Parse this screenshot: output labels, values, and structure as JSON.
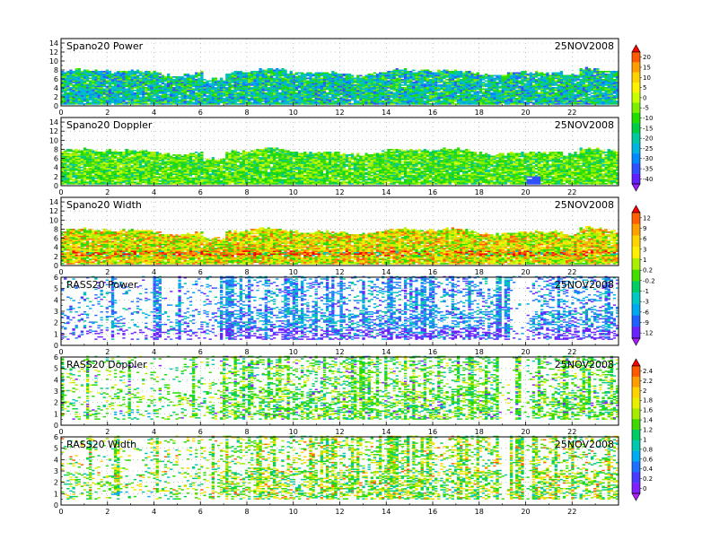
{
  "colors": {
    "cbar_power": [
      "#ff0000",
      "#ff5a00",
      "#ff9e00",
      "#ffd200",
      "#fff200",
      "#c8ff00",
      "#7cf000",
      "#22dd00",
      "#00cc44",
      "#00c8a0",
      "#00b4e0",
      "#0088ff",
      "#3050ff",
      "#6020ff",
      "#9a1cff"
    ],
    "cbar_width": [
      "#ff0000",
      "#ff6000",
      "#ffa000",
      "#ffd400",
      "#fff000",
      "#aaee00",
      "#44dd00",
      "#00cc66",
      "#00c8c0",
      "#00a8f0",
      "#2060ff",
      "#6a22ff",
      "#a61cff"
    ],
    "cbar_rass_power": [
      "#ffd400",
      "#aaee00",
      "#22dd00",
      "#00c8a0",
      "#00b4e0",
      "#3070ff",
      "#6a22ff",
      "#a61cff"
    ],
    "cbar_rass_doppler": [
      "#ff0000",
      "#ff5a00",
      "#ff9e00",
      "#ffd200",
      "#e8f000",
      "#a6ea00",
      "#40d800",
      "#00cc66",
      "#00c8b0",
      "#00aaf0",
      "#1e70ff",
      "#4a3cff",
      "#8020ff",
      "#b21cff"
    ]
  },
  "chart_data": [
    {
      "type": "heatmap",
      "title": "Spano20  Power",
      "date": "25NOV2008",
      "x_ticks": [
        "0",
        "2",
        "4",
        "6",
        "8",
        "10",
        "12",
        "14",
        "16",
        "18",
        "20",
        "22"
      ],
      "xlim": [
        0,
        24
      ],
      "y_ticks": [
        "0",
        "2",
        "4",
        "6",
        "8",
        "10",
        "12",
        "14"
      ],
      "ylim": [
        0,
        15
      ],
      "grid": "dotted",
      "palette": "power",
      "colorbar": {
        "ticks": [
          "20",
          "15",
          "10",
          "5",
          "0",
          "-5",
          "-10",
          "-15",
          "-20",
          "-25",
          "-30",
          "-35",
          "-40"
        ],
        "range": [
          -40,
          20
        ]
      }
    },
    {
      "type": "heatmap",
      "title": "Spano20  Doppler",
      "date": "25NOV2008",
      "x_ticks": [
        "0",
        "2",
        "4",
        "6",
        "8",
        "10",
        "12",
        "14",
        "16",
        "18",
        "20",
        "22"
      ],
      "xlim": [
        0,
        24
      ],
      "y_ticks": [
        "0",
        "2",
        "4",
        "6",
        "8",
        "10",
        "12",
        "14"
      ],
      "ylim": [
        0,
        15
      ],
      "grid": "dotted",
      "palette": "doppler"
    },
    {
      "type": "heatmap",
      "title": "Spano20  Width",
      "date": "25NOV2008",
      "x_ticks": [
        "0",
        "2",
        "4",
        "6",
        "8",
        "10",
        "12",
        "14",
        "16",
        "18",
        "20",
        "22"
      ],
      "xlim": [
        0,
        24
      ],
      "y_ticks": [
        "0",
        "2",
        "4",
        "6",
        "8",
        "10",
        "12",
        "14"
      ],
      "ylim": [
        0,
        15
      ],
      "grid": "dotted",
      "palette": "width",
      "colorbar": {
        "ticks": [
          "12",
          "9",
          "6",
          "3",
          "1",
          "0.2",
          "-0.2",
          "-1",
          "-3",
          "-6",
          "-9",
          "-12"
        ],
        "range": [
          -12,
          12
        ]
      }
    },
    {
      "type": "heatmap",
      "title": "RASS20  Power",
      "date": "25NOV2008",
      "x_ticks": [
        "0",
        "2",
        "4",
        "6",
        "8",
        "10",
        "12",
        "14",
        "16",
        "18",
        "20",
        "22"
      ],
      "xlim": [
        0,
        24
      ],
      "y_ticks": [
        "0",
        "1",
        "2",
        "3",
        "4",
        "5",
        "6"
      ],
      "ylim": [
        0,
        6
      ],
      "grid": "dotted",
      "palette": "rass_power"
    },
    {
      "type": "heatmap",
      "title": "RASS20  Doppler",
      "date": "25NOV2008",
      "x_ticks": [
        "0",
        "2",
        "4",
        "6",
        "8",
        "10",
        "12",
        "14",
        "16",
        "18",
        "20",
        "22"
      ],
      "xlim": [
        0,
        24
      ],
      "y_ticks": [
        "0",
        "1",
        "2",
        "3",
        "4",
        "5",
        "6"
      ],
      "ylim": [
        0,
        6
      ],
      "grid": "dotted",
      "palette": "rass_doppler",
      "colorbar": {
        "ticks": [
          "2.4",
          "2.2",
          "2",
          "1.8",
          "1.6",
          "1.4",
          "1.2",
          "1",
          "0.8",
          "0.6",
          "0.4",
          "0.2",
          "0"
        ],
        "range": [
          0,
          2.4
        ]
      }
    },
    {
      "type": "heatmap",
      "title": "RASS20  Width",
      "date": "25NOV2008",
      "x_ticks": [
        "0",
        "2",
        "4",
        "6",
        "8",
        "10",
        "12",
        "14",
        "16",
        "18",
        "20",
        "22"
      ],
      "xlim": [
        0,
        24
      ],
      "y_ticks": [
        "0",
        "1",
        "2",
        "3",
        "4",
        "5",
        "6"
      ],
      "ylim": [
        0,
        6
      ],
      "grid": "dotted",
      "palette": "rass_width"
    }
  ]
}
